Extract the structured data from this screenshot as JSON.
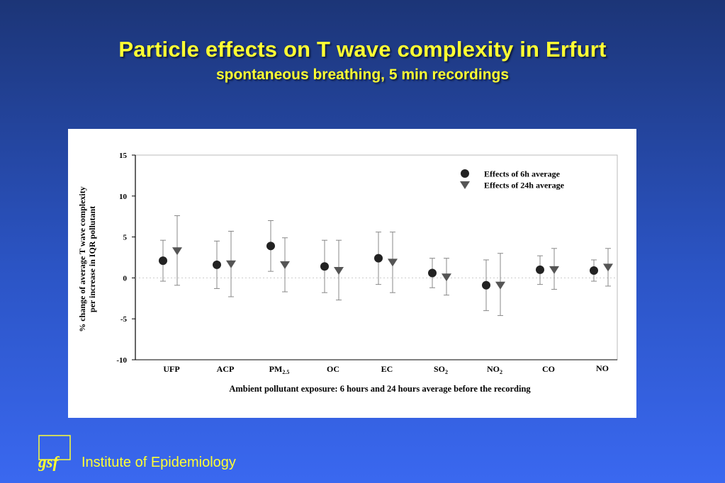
{
  "slide": {
    "title": "Particle effects on T wave complexity in Erfurt",
    "subtitle": "spontaneous breathing,  5 min  recordings",
    "footer": "Institute of Epidemiology",
    "logo_text": "gsf"
  },
  "colors": {
    "title": "#ffff33",
    "series_6h": "#222222",
    "series_24h": "#555555",
    "errorbar": "#888888"
  },
  "chart_data": {
    "type": "scatter",
    "categories": [
      "UFP",
      "ACP",
      "PM2.5",
      "OC",
      "EC",
      "SO2",
      "NO2",
      "CO",
      "NO"
    ],
    "category_labels": [
      {
        "main": "UFP",
        "sub": ""
      },
      {
        "main": "ACP",
        "sub": ""
      },
      {
        "main": "PM",
        "sub": "2.5"
      },
      {
        "main": "OC",
        "sub": ""
      },
      {
        "main": "EC",
        "sub": ""
      },
      {
        "main": "SO",
        "sub": "2"
      },
      {
        "main": "NO",
        "sub": "2"
      },
      {
        "main": "CO",
        "sub": ""
      },
      {
        "main": "NO",
        "sub": ""
      }
    ],
    "series": [
      {
        "name": "Effects of 6h average",
        "marker": "circle",
        "values": [
          2.1,
          1.6,
          3.9,
          1.4,
          2.4,
          0.6,
          -0.9,
          1.0,
          0.9
        ],
        "lower": [
          -0.4,
          -1.3,
          0.8,
          -1.8,
          -0.8,
          -1.2,
          -4.0,
          -0.8,
          -0.4
        ],
        "upper": [
          4.6,
          4.5,
          7.0,
          4.6,
          5.6,
          2.4,
          2.2,
          2.7,
          2.2
        ]
      },
      {
        "name": "Effects of 24h average",
        "marker": "triangle-down",
        "values": [
          3.3,
          1.7,
          1.6,
          0.9,
          1.9,
          0.1,
          -0.9,
          1.0,
          1.3
        ],
        "lower": [
          -0.9,
          -2.3,
          -1.7,
          -2.7,
          -1.8,
          -2.1,
          -4.6,
          -1.4,
          -1.0
        ],
        "upper": [
          7.6,
          5.7,
          4.9,
          4.6,
          5.6,
          2.4,
          3.0,
          3.6,
          3.6
        ]
      }
    ],
    "yticks": [
      15,
      10,
      5,
      0,
      -5,
      -10
    ],
    "ylim": [
      -10,
      15
    ],
    "ylabel_line1": "%  change of average T  wave complexity",
    "ylabel_line2": "per increase in IQR  pollutant",
    "xlabel": "Ambient pollutant exposure: 6 hours and 24 hours average before the recording",
    "legend_position": "top-right",
    "zero_line": "dotted"
  }
}
